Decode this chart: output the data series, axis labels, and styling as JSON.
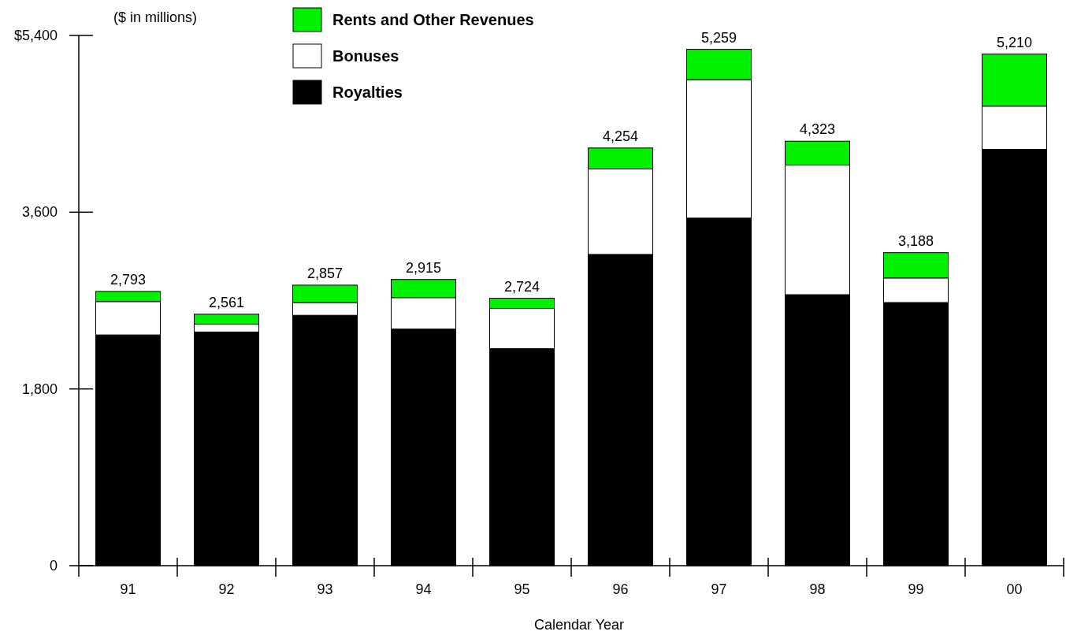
{
  "chart_data": {
    "type": "bar",
    "stacked": true,
    "ylabel": "($ in millions)",
    "xlabel": "Calendar Year",
    "categories": [
      "91",
      "92",
      "93",
      "94",
      "95",
      "96",
      "97",
      "98",
      "99",
      "00"
    ],
    "series": [
      {
        "name": "Royalties",
        "color": "#000000",
        "values": [
          2350,
          2380,
          2550,
          2410,
          2210,
          3170,
          3540,
          2760,
          2680,
          4240
        ]
      },
      {
        "name": "Bonuses",
        "color": "#ffffff",
        "values": [
          340,
          80,
          130,
          320,
          410,
          870,
          1410,
          1320,
          250,
          440
        ]
      },
      {
        "name": "Rents and Other Revenues",
        "color": "#00f000",
        "values": [
          103,
          101,
          177,
          185,
          104,
          214,
          309,
          243,
          258,
          530
        ]
      }
    ],
    "totals": [
      "2,793",
      "2,561",
      "2,857",
      "2,915",
      "2,724",
      "4,254",
      "5,259",
      "4,323",
      "3,188",
      "5,210"
    ],
    "ylim": [
      0,
      5400
    ],
    "yticks": [
      0,
      {
        "value": 1800,
        "label": "1,800"
      },
      {
        "value": 3600,
        "label": "3,600"
      },
      {
        "value": 5400,
        "label": "$5,400"
      }
    ],
    "grid": false,
    "legend": "top"
  }
}
